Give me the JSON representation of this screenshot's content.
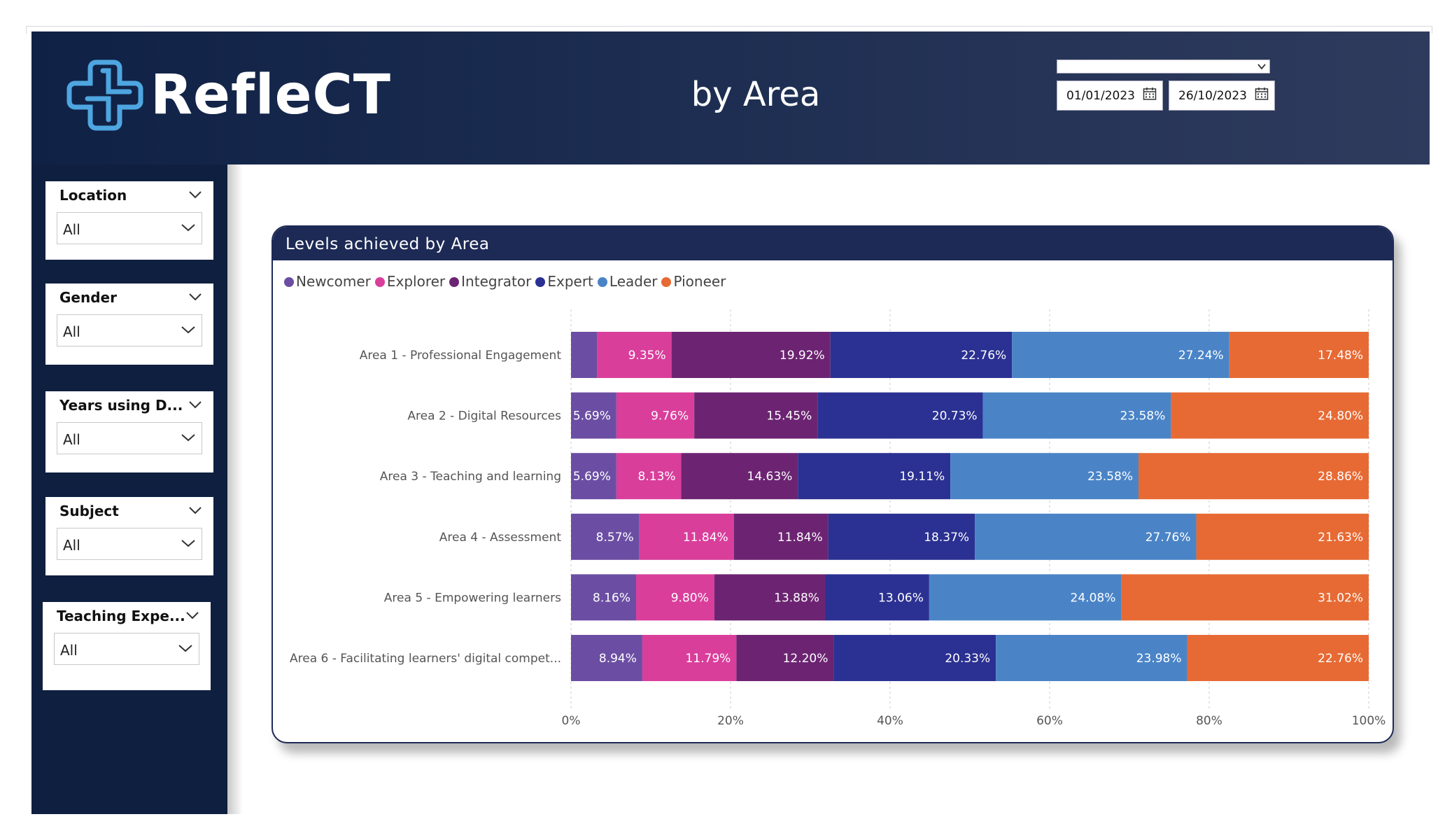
{
  "header": {
    "logo_text": "RefleCT",
    "title": "by Area",
    "date_start": "01/01/2023",
    "date_end": "26/10/2023"
  },
  "filters": [
    {
      "title": "Location",
      "value": "All"
    },
    {
      "title": "Gender",
      "value": "All"
    },
    {
      "title": "Years using D...",
      "value": "All"
    },
    {
      "title": "Subject",
      "value": "All"
    },
    {
      "title": "Teaching Expe...",
      "value": "All"
    }
  ],
  "icons": {
    "logo": "cross-logo-icon",
    "dropdown": "chevron-down-icon",
    "calendar": "calendar-icon"
  },
  "colors": {
    "header_bg": "#0f2145",
    "sidebar_bg": "#0f1f40",
    "chart_header_bg": "#1d2a56",
    "logo_accent": "#4ea6e0"
  },
  "chart_data": {
    "type": "bar",
    "orientation": "horizontal",
    "stacked": "100%",
    "title": "Levels achieved by Area",
    "xlim": [
      0,
      100
    ],
    "x_ticks": [
      "0%",
      "20%",
      "40%",
      "60%",
      "80%",
      "100%"
    ],
    "grid": "vertical dashed",
    "legend_position": "top-left",
    "categories": [
      "Area 1 - Professional Engagement",
      "Area 2 - Digital Resources",
      "Area 3 - Teaching and learning",
      "Area 4 - Assessment",
      "Area 5 - Empowering learners",
      "Area 6 - Facilitating learners' digital compet..."
    ],
    "series": [
      {
        "name": "Newcomer",
        "color": "#6b4ea3",
        "values": [
          3.25,
          5.69,
          5.69,
          8.57,
          8.16,
          8.94
        ],
        "labels": [
          "",
          "5.69%",
          "5.69%",
          "8.57%",
          "8.16%",
          "8.94%"
        ]
      },
      {
        "name": "Explorer",
        "color": "#d93e9b",
        "values": [
          9.35,
          9.76,
          8.13,
          11.84,
          9.8,
          11.79
        ],
        "labels": [
          "9.35%",
          "9.76%",
          "8.13%",
          "11.84%",
          "9.80%",
          "11.79%"
        ]
      },
      {
        "name": "Integrator",
        "color": "#6c2472",
        "values": [
          19.92,
          15.45,
          14.63,
          11.84,
          13.88,
          12.2
        ],
        "labels": [
          "19.92%",
          "15.45%",
          "14.63%",
          "11.84%",
          "13.88%",
          "12.20%"
        ]
      },
      {
        "name": "Expert",
        "color": "#2b3192",
        "values": [
          22.76,
          20.73,
          19.11,
          18.37,
          13.06,
          20.33
        ],
        "labels": [
          "22.76%",
          "20.73%",
          "19.11%",
          "18.37%",
          "13.06%",
          "20.33%"
        ]
      },
      {
        "name": "Leader",
        "color": "#4a84c7",
        "values": [
          27.24,
          23.58,
          23.58,
          27.76,
          24.08,
          23.98
        ],
        "labels": [
          "27.24%",
          "23.58%",
          "23.58%",
          "27.76%",
          "24.08%",
          "23.98%"
        ]
      },
      {
        "name": "Pioneer",
        "color": "#e76a34",
        "values": [
          17.48,
          24.8,
          28.86,
          21.63,
          31.02,
          22.76
        ],
        "labels": [
          "17.48%",
          "24.80%",
          "28.86%",
          "21.63%",
          "31.02%",
          "22.76%"
        ]
      }
    ]
  }
}
